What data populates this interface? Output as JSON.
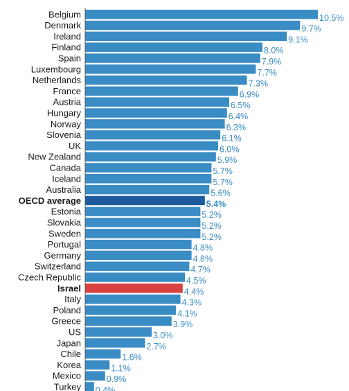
{
  "chart_data": {
    "type": "bar",
    "orientation": "horizontal",
    "title": "",
    "xlabel": "",
    "ylabel": "",
    "xlim": [
      0,
      10.5
    ],
    "grid": false,
    "legend": "none",
    "value_suffix": "%",
    "colors": {
      "bar": "#3a8cc4",
      "value_label": "#3a8cc4",
      "category_label": "#1a1a1a",
      "axis": "#555555"
    },
    "highlights": {
      "OECD average": {
        "bar": "#1c5a9c",
        "label": "#1c4f8a",
        "value_label": "#1c4f8a"
      },
      "Israel": {
        "bar": "#d94040",
        "label": "#d94040",
        "value_label": "#d94040"
      }
    },
    "categories": [
      "Belgium",
      "Denmark",
      "Ireland",
      "Finland",
      "Spain",
      "Luxembourg",
      "Netherlands",
      "France",
      "Austria",
      "Hungary",
      "Norway",
      "Slovenia",
      "UK",
      "New Zealand",
      "Canada",
      "Iceland",
      "Australia",
      "OECD average",
      "Estonia",
      "Slovakia",
      "Sweden",
      "Portugal",
      "Germany",
      "Switzerland",
      "Czech Republic",
      "Israel",
      "Italy",
      "Poland",
      "Greece",
      "US",
      "Japan",
      "Chile",
      "Korea",
      "Mexico",
      "Turkey"
    ],
    "values": [
      10.5,
      9.7,
      9.1,
      8.0,
      7.9,
      7.7,
      7.3,
      6.9,
      6.5,
      6.4,
      6.3,
      6.1,
      6.0,
      5.9,
      5.7,
      5.7,
      5.6,
      5.4,
      5.2,
      5.2,
      5.2,
      4.8,
      4.8,
      4.7,
      4.5,
      4.4,
      4.3,
      4.1,
      3.9,
      3.0,
      2.7,
      1.6,
      1.1,
      0.9,
      0.4
    ]
  }
}
